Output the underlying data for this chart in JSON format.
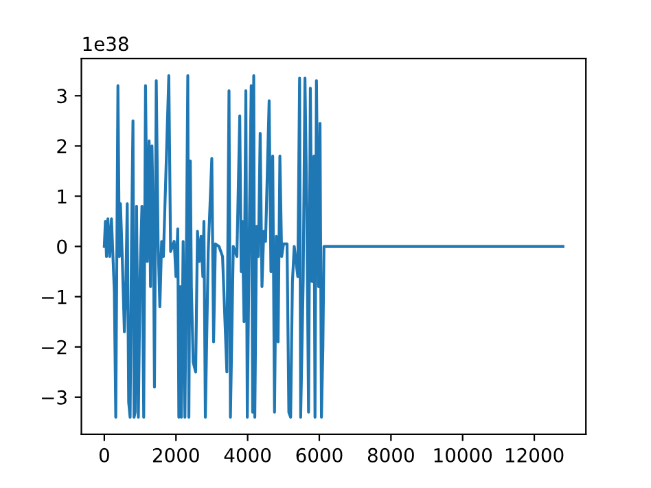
{
  "chart_data": {
    "type": "line",
    "x": [
      0,
      30,
      60,
      100,
      150,
      200,
      280,
      320,
      380,
      420,
      450,
      500,
      560,
      600,
      640,
      680,
      720,
      760,
      800,
      830,
      860,
      900,
      950,
      1000,
      1050,
      1100,
      1150,
      1200,
      1250,
      1290,
      1330,
      1370,
      1400,
      1450,
      1500,
      1550,
      1600,
      1650,
      1800,
      1850,
      1950,
      2000,
      2050,
      2080,
      2120,
      2150,
      2200,
      2250,
      2300,
      2330,
      2360,
      2400,
      2430,
      2480,
      2550,
      2600,
      2650,
      2700,
      2750,
      2780,
      2820,
      2900,
      3000,
      3050,
      3100,
      3200,
      3300,
      3420,
      3480,
      3520,
      3600,
      3700,
      3780,
      3820,
      3850,
      3900,
      3950,
      3990,
      4050,
      4100,
      4140,
      4170,
      4200,
      4250,
      4300,
      4350,
      4400,
      4450,
      4500,
      4600,
      4650,
      4700,
      4750,
      4800,
      4850,
      4900,
      4950,
      5000,
      5100,
      5150,
      5200,
      5250,
      5300,
      5400,
      5450,
      5480,
      5550,
      5600,
      5650,
      5700,
      5750,
      5800,
      5850,
      5880,
      5920,
      5980,
      6020,
      6060,
      6100,
      6130,
      12800
    ],
    "series": [
      {
        "color": "#1f77b4",
        "values": [
          0,
          0.5,
          -0.2,
          0.55,
          -0.2,
          0.55,
          -0.9,
          -3.4,
          3.2,
          -0.2,
          0.85,
          -0.2,
          -1.7,
          -0.8,
          0.85,
          -3.1,
          -3.4,
          0.1,
          2.5,
          -3.4,
          -3.3,
          0.8,
          -3.4,
          -0.5,
          0.8,
          -3.4,
          3.2,
          -0.3,
          2.1,
          -0.8,
          2.0,
          0.3,
          -2.8,
          3.3,
          0.1,
          -1.2,
          0.1,
          -0.2,
          3.4,
          -0.1,
          0.1,
          -0.6,
          0.35,
          -3.4,
          -0.8,
          -3.4,
          0.1,
          -3.4,
          0.7,
          3.4,
          -3.4,
          1.7,
          -0.8,
          -2.3,
          -2.5,
          0.3,
          -0.3,
          0.2,
          -0.6,
          0.5,
          -3.4,
          -0.1,
          1.75,
          -1.9,
          0.05,
          0,
          -0.2,
          -2.5,
          3.1,
          -3.4,
          0,
          -0.2,
          2.6,
          -0.5,
          0.5,
          -1.5,
          3.1,
          -3.4,
          0.5,
          3.2,
          -3.3,
          3.4,
          -3.4,
          0.4,
          -0.2,
          2.25,
          -0.8,
          0.3,
          0.1,
          2.9,
          -0.5,
          1.8,
          -3.3,
          0.2,
          -1.9,
          1.8,
          -0.2,
          0.05,
          0.05,
          -3.3,
          -3.4,
          -0.7,
          0,
          -0.6,
          3.35,
          -3.4,
          -0.7,
          3.35,
          0.8,
          -3.3,
          3.15,
          -0.7,
          1.8,
          -3.4,
          3.3,
          -0.8,
          2.45,
          -3.4,
          -2.0,
          0,
          0
        ]
      }
    ],
    "xlim": [
      -640,
      13440
    ],
    "ylim": [
      -3.74,
      3.74
    ],
    "xticks": [
      0,
      2000,
      4000,
      6000,
      8000,
      10000,
      12000
    ],
    "yticks": [
      {
        "value": -3,
        "label": "−3"
      },
      {
        "value": -2,
        "label": "−2"
      },
      {
        "value": -1,
        "label": "−1"
      },
      0,
      1,
      2,
      3
    ],
    "annotations": [
      "1e38"
    ],
    "grid": false,
    "marker": "none",
    "line_style": "solid"
  }
}
